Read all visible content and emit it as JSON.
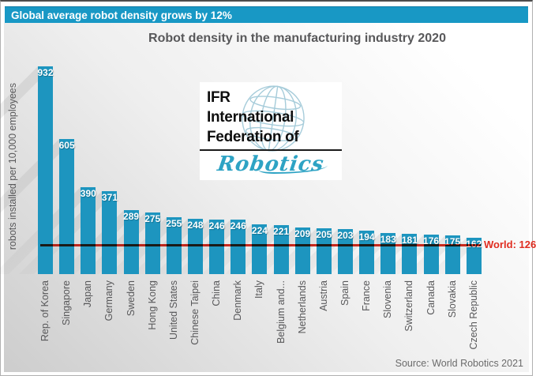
{
  "banner": {
    "text": "Global average robot density grows by 12%"
  },
  "title": "Robot density in the manufacturing industry 2020",
  "y_axis_label": "robots installed per 10,000 employees",
  "world_line_label": "World: 126",
  "source": "Source: World Robotics 2021",
  "logo": {
    "line1": "IFR",
    "line2": "International",
    "line3": "Federation of",
    "script": "Robotics",
    "icon": "globe-icon"
  },
  "colors": {
    "banner_bg": "#1898c5",
    "bar": "#1d95bf",
    "world_line": "#e02d20",
    "title_text": "#595959",
    "axis_text": "#58585a",
    "value_text": "#ffffff",
    "source_text": "#6b6b6b",
    "logo_script": "#2ea3c4"
  },
  "chart_data": {
    "type": "bar",
    "title": "Robot density in the manufacturing industry 2020",
    "xlabel": "",
    "ylabel": "robots installed per 10,000 employees",
    "categories": [
      "Rep. of Korea",
      "Singapore",
      "Japan",
      "Germany",
      "Sweden",
      "Hong Kong",
      "United States",
      "Chinese Taipei",
      "China",
      "Denmark",
      "Italy",
      "Belgium and...",
      "Netherlands",
      "Austria",
      "Spain",
      "France",
      "Slovenia",
      "Switzerland",
      "Canada",
      "Slovakia",
      "Czech Republic"
    ],
    "values": [
      932,
      605,
      390,
      371,
      289,
      275,
      255,
      248,
      246,
      246,
      224,
      221,
      209,
      205,
      203,
      194,
      183,
      181,
      176,
      175,
      162
    ],
    "reference_line": {
      "label": "World: 126",
      "value": 126
    },
    "ylim": [
      0,
      960
    ],
    "grid": false,
    "legend": false,
    "value_labels": "on bar tops, white",
    "source": "Source: World Robotics 2021"
  }
}
